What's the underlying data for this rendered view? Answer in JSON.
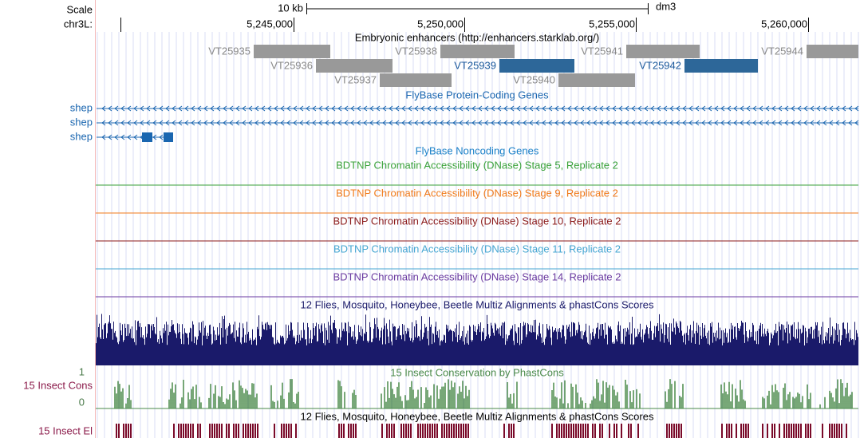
{
  "left_labels": {
    "scale": "Scale",
    "chrom": "chr3L:",
    "cons": "15 Insect Cons",
    "cons_max": "1",
    "cons_min": "0",
    "elements": "15 Insect El"
  },
  "ruler": {
    "scale_length": "10 kb",
    "assembly": "dm3",
    "positions": [
      "5,245,000",
      "5,250,000",
      "5,255,000",
      "5,260,000"
    ]
  },
  "tracks": {
    "enhancers": {
      "title": "Embryonic enhancers (http://enhancers.starklab.org/)",
      "features": [
        "VT25935",
        "VT25936",
        "VT25937",
        "VT25938",
        "VT25939",
        "VT25940",
        "VT25941",
        "VT25942",
        "VT25944"
      ]
    },
    "protein_genes": {
      "title": "FlyBase Protein-Coding Genes",
      "genes": [
        "shep",
        "shep",
        "shep"
      ]
    },
    "noncoding_genes": {
      "title": "FlyBase Noncoding Genes"
    },
    "dnase": [
      "BDTNP Chromatin Accessibility (DNase) Stage 5, Replicate 2",
      "BDTNP Chromatin Accessibility (DNase) Stage 9, Replicate 2",
      "BDTNP Chromatin Accessibility (DNase) Stage 10, Replicate 2",
      "BDTNP Chromatin Accessibility (DNase) Stage 11, Replicate 2",
      "BDTNP Chromatin Accessibility (DNase) Stage 14, Replicate 2"
    ],
    "multiz": {
      "title": "12 Flies, Mosquito, Honeybee, Beetle Multiz Alignments & phastCons Scores"
    },
    "phastcons": {
      "title": "15 Insect Conservation by PhastCons"
    },
    "elements": {
      "title": "12 Flies, Mosquito, Honeybee, Beetle Multiz Alignments & phastCons Scores"
    }
  }
}
